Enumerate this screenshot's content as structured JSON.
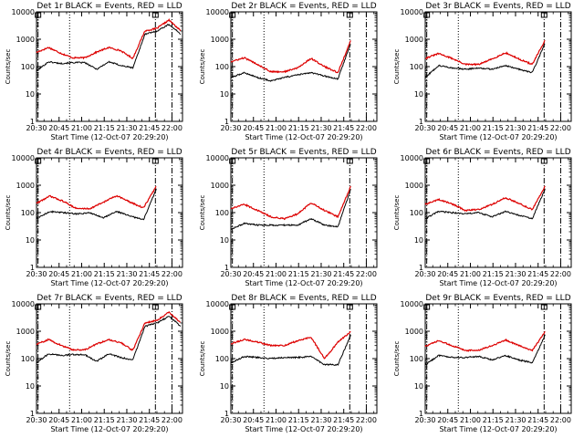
{
  "chart_data": {
    "type": "line",
    "layout": "3x3 grid of panels",
    "x_tick_labels": [
      "20:30",
      "20:45",
      "21:00",
      "21:15",
      "21:30",
      "21:45",
      "22:00"
    ],
    "x_tick_minutes": [
      0,
      15,
      30,
      45,
      60,
      75,
      90
    ],
    "x_range_minutes": [
      0,
      97
    ],
    "xlabel": "Start Time (12-Oct-07 20:29:20)",
    "ylabel": "Counts/sec",
    "yscale": "log",
    "ylim": [
      1,
      10000
    ],
    "y_tick_labels": [
      "1",
      "10",
      "100",
      "1000",
      "10000"
    ],
    "y_tick_values": [
      1,
      10,
      100,
      1000,
      10000
    ],
    "series_colors": {
      "events": "#000000",
      "lld": "#dd0000"
    },
    "vertical_markers": [
      {
        "style": "dotted",
        "minute": 22
      },
      {
        "style": "dashdot",
        "minute": 79
      },
      {
        "style": "dashdot",
        "minute": 90
      }
    ],
    "panels": [
      {
        "title": "Det 1r BLACK = Events, RED = LLD",
        "lld": [
          330,
          500,
          310,
          210,
          210,
          340,
          500,
          380,
          200,
          2000,
          2500,
          5000,
          2000
        ],
        "events": [
          70,
          150,
          130,
          140,
          140,
          80,
          150,
          110,
          90,
          1500,
          2000,
          3500,
          1500
        ]
      },
      {
        "title": "Det 2r BLACK = Events, RED = LLD",
        "lld": [
          150,
          210,
          120,
          65,
          65,
          90,
          200,
          100,
          60,
          1000
        ],
        "events": [
          40,
          60,
          40,
          30,
          40,
          50,
          60,
          45,
          35,
          800
        ]
      },
      {
        "title": "Det 3r BLACK = Events, RED = LLD",
        "lld": [
          200,
          300,
          200,
          120,
          120,
          190,
          320,
          190,
          120,
          1000
        ],
        "events": [
          40,
          110,
          90,
          80,
          90,
          80,
          110,
          80,
          60,
          800
        ]
      },
      {
        "title": "Det 4r BLACK = Events, RED = LLD",
        "lld": [
          220,
          400,
          260,
          140,
          140,
          240,
          420,
          240,
          150,
          1000
        ],
        "events": [
          60,
          110,
          100,
          90,
          100,
          65,
          110,
          75,
          55,
          800
        ]
      },
      {
        "title": "Det 5r BLACK = Events, RED = LLD",
        "lld": [
          140,
          200,
          120,
          70,
          60,
          90,
          230,
          120,
          70,
          1000
        ],
        "events": [
          25,
          40,
          35,
          35,
          35,
          35,
          60,
          35,
          30,
          800
        ]
      },
      {
        "title": "Det 6r BLACK = Events, RED = LLD",
        "lld": [
          200,
          300,
          210,
          120,
          130,
          200,
          350,
          220,
          130,
          1000
        ],
        "events": [
          60,
          110,
          100,
          90,
          100,
          70,
          110,
          80,
          60,
          800
        ]
      },
      {
        "title": "Det 7r BLACK = Events, RED = LLD",
        "lld": [
          330,
          500,
          310,
          210,
          210,
          340,
          500,
          380,
          200,
          2000,
          2500,
          5000,
          2000
        ],
        "events": [
          70,
          150,
          130,
          140,
          140,
          80,
          150,
          110,
          90,
          1500,
          2000,
          3500,
          1500
        ]
      },
      {
        "title": "Det 8r BLACK = Events, RED = LLD",
        "lld": [
          350,
          500,
          400,
          300,
          300,
          450,
          600,
          100,
          400,
          1000
        ],
        "events": [
          70,
          120,
          110,
          100,
          110,
          110,
          120,
          60,
          60,
          800
        ]
      },
      {
        "title": "Det 9r BLACK = Events, RED = LLD",
        "lld": [
          280,
          450,
          300,
          200,
          200,
          300,
          480,
          300,
          200,
          1000
        ],
        "events": [
          60,
          130,
          110,
          110,
          120,
          90,
          130,
          90,
          70,
          800
        ]
      }
    ]
  }
}
